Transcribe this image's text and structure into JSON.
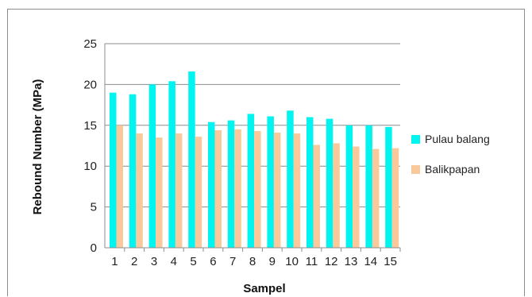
{
  "chart_data": {
    "type": "bar",
    "title": "",
    "xlabel": "Sampel",
    "ylabel": "Rebound Number (MPa)",
    "ylim": [
      0,
      25
    ],
    "yticks": [
      0,
      5,
      10,
      15,
      20,
      25
    ],
    "grid": true,
    "legend_position": "right",
    "categories": [
      "1",
      "2",
      "3",
      "4",
      "5",
      "6",
      "7",
      "8",
      "9",
      "10",
      "11",
      "12",
      "13",
      "14",
      "15"
    ],
    "series": [
      {
        "name": "Pulau balang",
        "color": "#00f5f0",
        "values": [
          19.0,
          18.8,
          20.0,
          20.4,
          21.6,
          15.4,
          15.6,
          16.4,
          16.1,
          16.8,
          16.0,
          15.8,
          15.0,
          15.0,
          14.8
        ]
      },
      {
        "name": "Balikpapan",
        "color": "#f9c89b",
        "values": [
          15.0,
          14.0,
          13.5,
          14.0,
          13.6,
          14.4,
          14.5,
          14.3,
          14.1,
          14.0,
          12.6,
          12.8,
          12.4,
          12.1,
          12.2
        ]
      }
    ]
  }
}
